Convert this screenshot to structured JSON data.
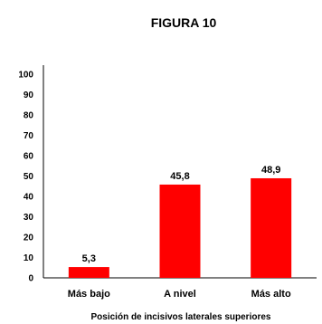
{
  "chart_data": {
    "type": "bar",
    "title": "FIGURA 10",
    "xlabel": "Posición de incisivos laterales superiores",
    "ylabel": "",
    "categories": [
      "Más bajo",
      "A nivel",
      "Más alto"
    ],
    "values": [
      5.3,
      45.8,
      48.9
    ],
    "value_labels": [
      "5,3",
      "45,8",
      "48,9"
    ],
    "ylim": [
      0,
      100
    ],
    "yticks": [
      0,
      10,
      20,
      30,
      40,
      50,
      60,
      70,
      80,
      90,
      100
    ],
    "grid": false,
    "legend": "none",
    "bar_color": "#ff0000"
  }
}
